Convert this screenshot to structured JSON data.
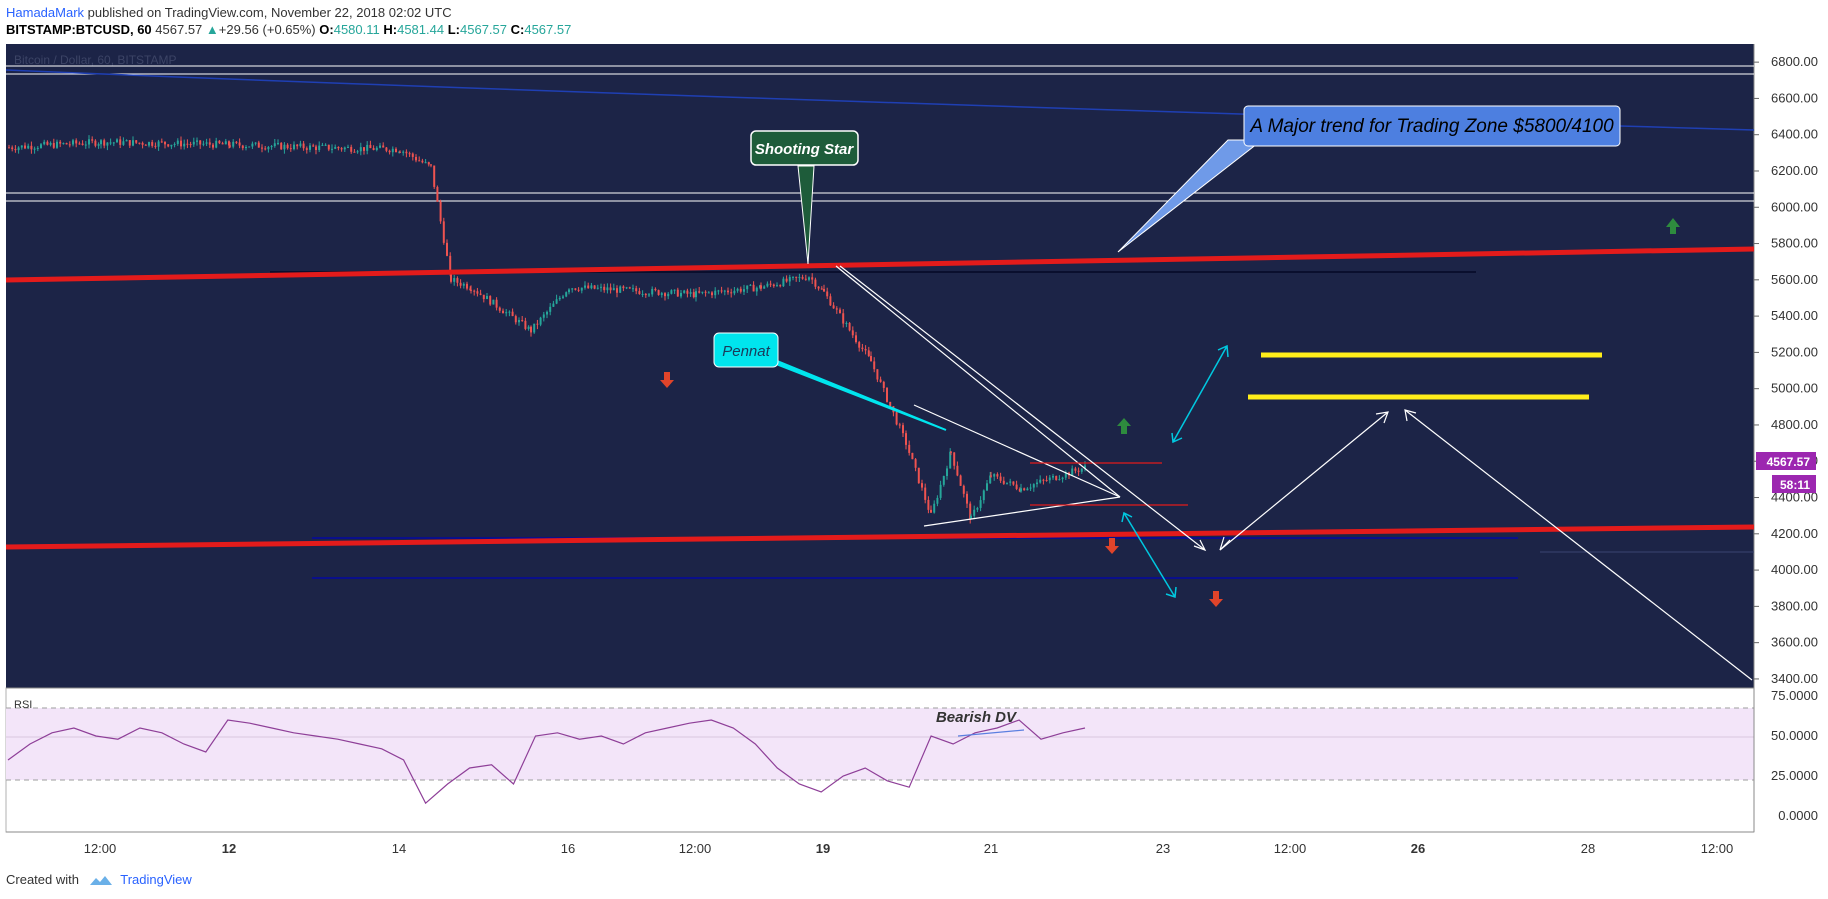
{
  "header": {
    "author": "HamadaMark",
    "published": " published on TradingView.com, November 22, 2018 02:02 UTC",
    "symbol": "BITSTAMP:BTCUSD, 60",
    "last": "4567.57",
    "change_arrow": "▲",
    "change": "+29.56 (+0.65%)",
    "o_label": "O:",
    "o": "4580.11",
    "h_label": "H:",
    "h": "4581.44",
    "l_label": "L:",
    "l": "4567.57",
    "c_label": "C:",
    "c": "4567.57"
  },
  "chart_watermark": "Bitcoin / Dollar, 60, BITSTAMP",
  "price_label": "4567.57",
  "countdown_label": "58:11",
  "annotations": {
    "trend_callout": "A Major trend for Trading Zone $5800/4100",
    "shooting_star": "Shooting Star",
    "pennant": "Pennat",
    "bearish_dv": "Bearish DV",
    "rsi_label": "RSI"
  },
  "footer": {
    "created_with": "Created with",
    "brand": "TradingView"
  },
  "colors": {
    "background": "#1c2447",
    "rsi_band": "#f3e5f9",
    "rsi_line": "#8e3f98",
    "trend_red": "#e31b1b",
    "resistance_yellow": "#ffee1a",
    "up_candle": "#26a69a",
    "down_candle": "#ef5350",
    "callout_blue": "#4d7fe0",
    "callout_green": "#1e5c3a",
    "callout_cyan": "#00e5ee"
  },
  "chart_data": [
    {
      "type": "candlestick",
      "title": "Bitcoin / Dollar, 60, BITSTAMP",
      "ylim": [
        3350,
        6900
      ],
      "y_ticks": [
        "6800.00",
        "6600.00",
        "6400.00",
        "6200.00",
        "6000.00",
        "5800.00",
        "5600.00",
        "5400.00",
        "5200.00",
        "5000.00",
        "4800.00",
        "4600.00",
        "4400.00",
        "4200.00",
        "4000.00",
        "3800.00",
        "3600.00",
        "3400.00"
      ],
      "x_ticks": [
        "12:00",
        "12",
        "14",
        "16",
        "12:00",
        "19",
        "21",
        "23",
        "12:00",
        "26",
        "28",
        "12:00"
      ],
      "price_path": [
        {
          "x": "Nov 11 00:00",
          "y": 6330
        },
        {
          "x": "Nov 11 12:00",
          "y": 6360
        },
        {
          "x": "Nov 12",
          "y": 6345
        },
        {
          "x": "Nov 13",
          "y": 6330
        },
        {
          "x": "Nov 14 00:00",
          "y": 6320
        },
        {
          "x": "Nov 14 12:00",
          "y": 6220
        },
        {
          "x": "Nov 14 18:00",
          "y": 5600
        },
        {
          "x": "Nov 15",
          "y": 5560
        },
        {
          "x": "Nov 15 12:00",
          "y": 5320
        },
        {
          "x": "Nov 16",
          "y": 5560
        },
        {
          "x": "Nov 17",
          "y": 5520
        },
        {
          "x": "Nov 18",
          "y": 5560
        },
        {
          "x": "Nov 18 18:00",
          "y": 5620
        },
        {
          "x": "Nov 19",
          "y": 5530
        },
        {
          "x": "Nov 19 12:00",
          "y": 5150
        },
        {
          "x": "Nov 20",
          "y": 4700
        },
        {
          "x": "Nov 20 12:00",
          "y": 4300
        },
        {
          "x": "Nov 20 18:00",
          "y": 4650
        },
        {
          "x": "Nov 21",
          "y": 4280
        },
        {
          "x": "Nov 21 06:00",
          "y": 4520
        },
        {
          "x": "Nov 21 12:00",
          "y": 4450
        },
        {
          "x": "Nov 22 02:00",
          "y": 4567.57
        }
      ],
      "levels": [
        {
          "name": "trend upper (red)",
          "from": {
            "x": "Nov 11",
            "y": 5590
          },
          "to": {
            "x": "Nov 29",
            "y": 5750
          }
        },
        {
          "name": "trend lower (red)",
          "from": {
            "x": "Nov 11",
            "y": 4100
          },
          "to": {
            "x": "Nov 29",
            "y": 4220
          }
        },
        {
          "name": "resistance 1 (yellow)",
          "y": 5170
        },
        {
          "name": "resistance 2 (yellow)",
          "y": 4950
        }
      ],
      "annotations": [
        "A Major trend for Trading Zone $5800/4100",
        "Shooting Star",
        "Pennat"
      ]
    },
    {
      "type": "line",
      "title": "RSI",
      "ylim": [
        -10,
        80
      ],
      "y_ticks": [
        "75.0000",
        "50.0000",
        "25.0000",
        "0.0000"
      ],
      "band": [
        30,
        70
      ],
      "values": [
        35,
        45,
        52,
        55,
        50,
        48,
        55,
        52,
        45,
        40,
        60,
        58,
        55,
        52,
        50,
        48,
        45,
        42,
        35,
        8,
        20,
        30,
        32,
        20,
        50,
        52,
        48,
        50,
        45,
        52,
        55,
        58,
        60,
        55,
        45,
        30,
        20,
        15,
        25,
        30,
        22,
        18,
        50,
        45,
        52,
        55,
        60,
        48,
        52,
        55
      ],
      "annotations": [
        "Bearish DV"
      ]
    }
  ]
}
